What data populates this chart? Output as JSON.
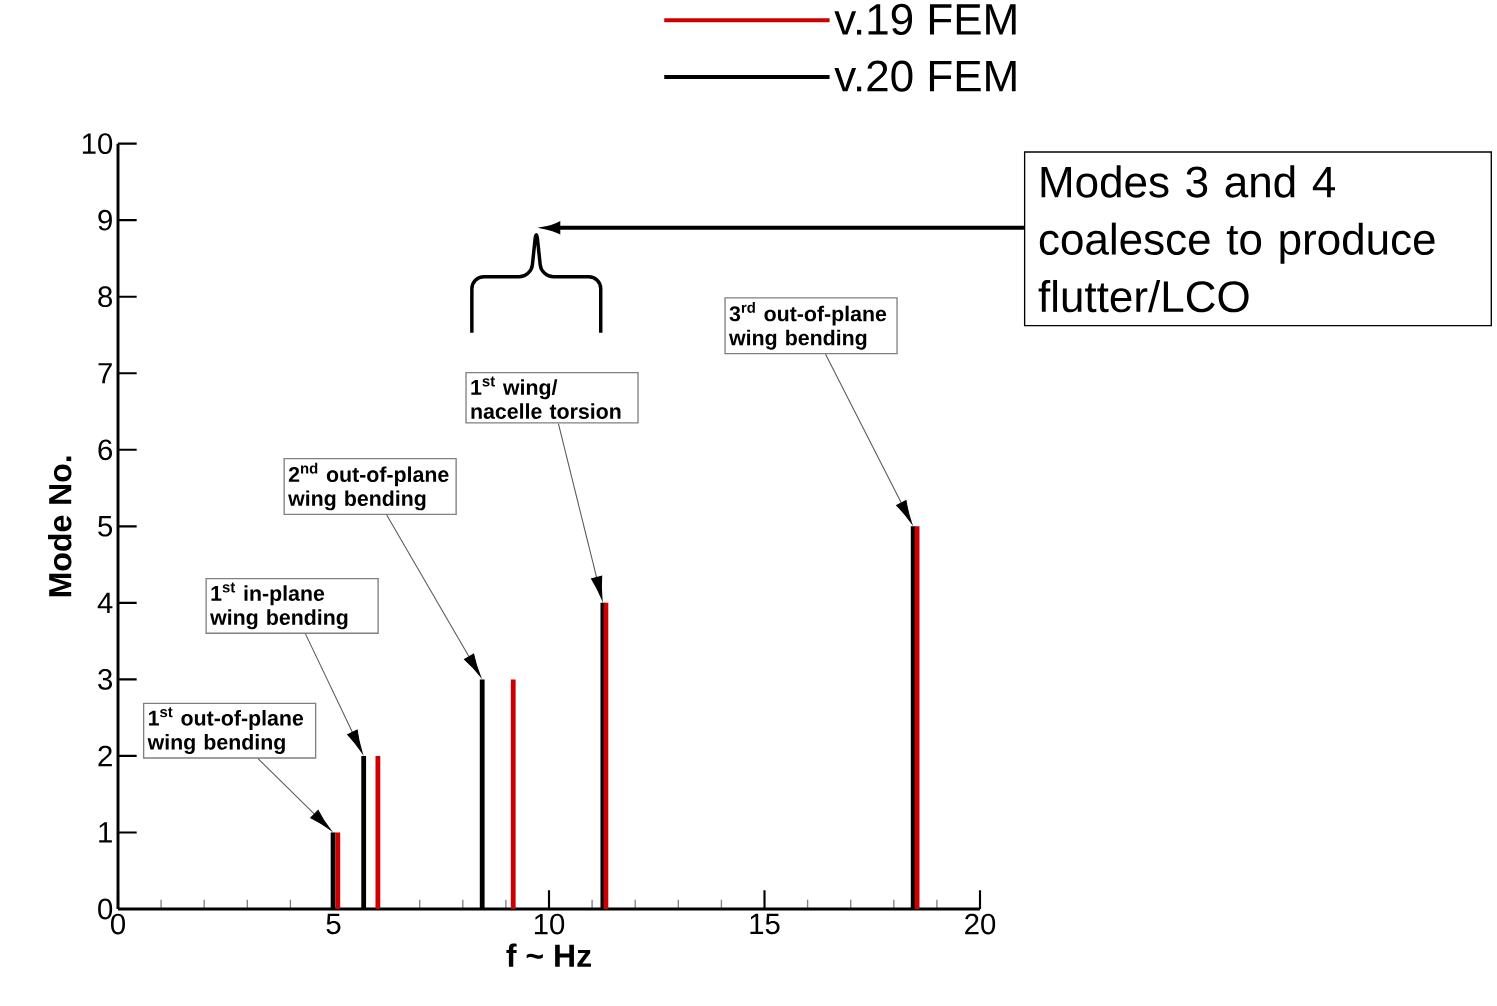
{
  "chart_data": {
    "type": "bar",
    "xlabel": "f ~ Hz",
    "ylabel": "Mode No.",
    "xlim": [
      0,
      20
    ],
    "ylim": [
      0,
      10
    ],
    "xticks": [
      0,
      5,
      10,
      15,
      20
    ],
    "yticks": [
      0,
      1,
      2,
      3,
      4,
      5,
      6,
      7,
      8,
      9,
      10
    ],
    "legend": "top",
    "series": [
      {
        "name": "v.19 FEM",
        "color": "#cc0000",
        "x": [
          5.1,
          6.03,
          9.17,
          11.32,
          18.54
        ],
        "values": [
          1,
          2,
          3,
          4,
          5
        ]
      },
      {
        "name": "v.20 FEM",
        "color": "#000000",
        "x": [
          4.99,
          5.7,
          8.45,
          11.25,
          18.45
        ],
        "values": [
          1,
          2,
          3,
          4,
          5
        ]
      }
    ],
    "annotations": [
      "1$^{st}$ out-of-plane wing bending",
      "1$^{st}$ in-plane wing bending",
      "2$^{nd}$ out-of-plane wing bending",
      "1$^{st}$ wing/ nacelle torsion",
      "3$^{rd}$ out-of-plane wing bending",
      "Modes 3 and 4 coalesce to produce flutter/LCO"
    ]
  }
}
